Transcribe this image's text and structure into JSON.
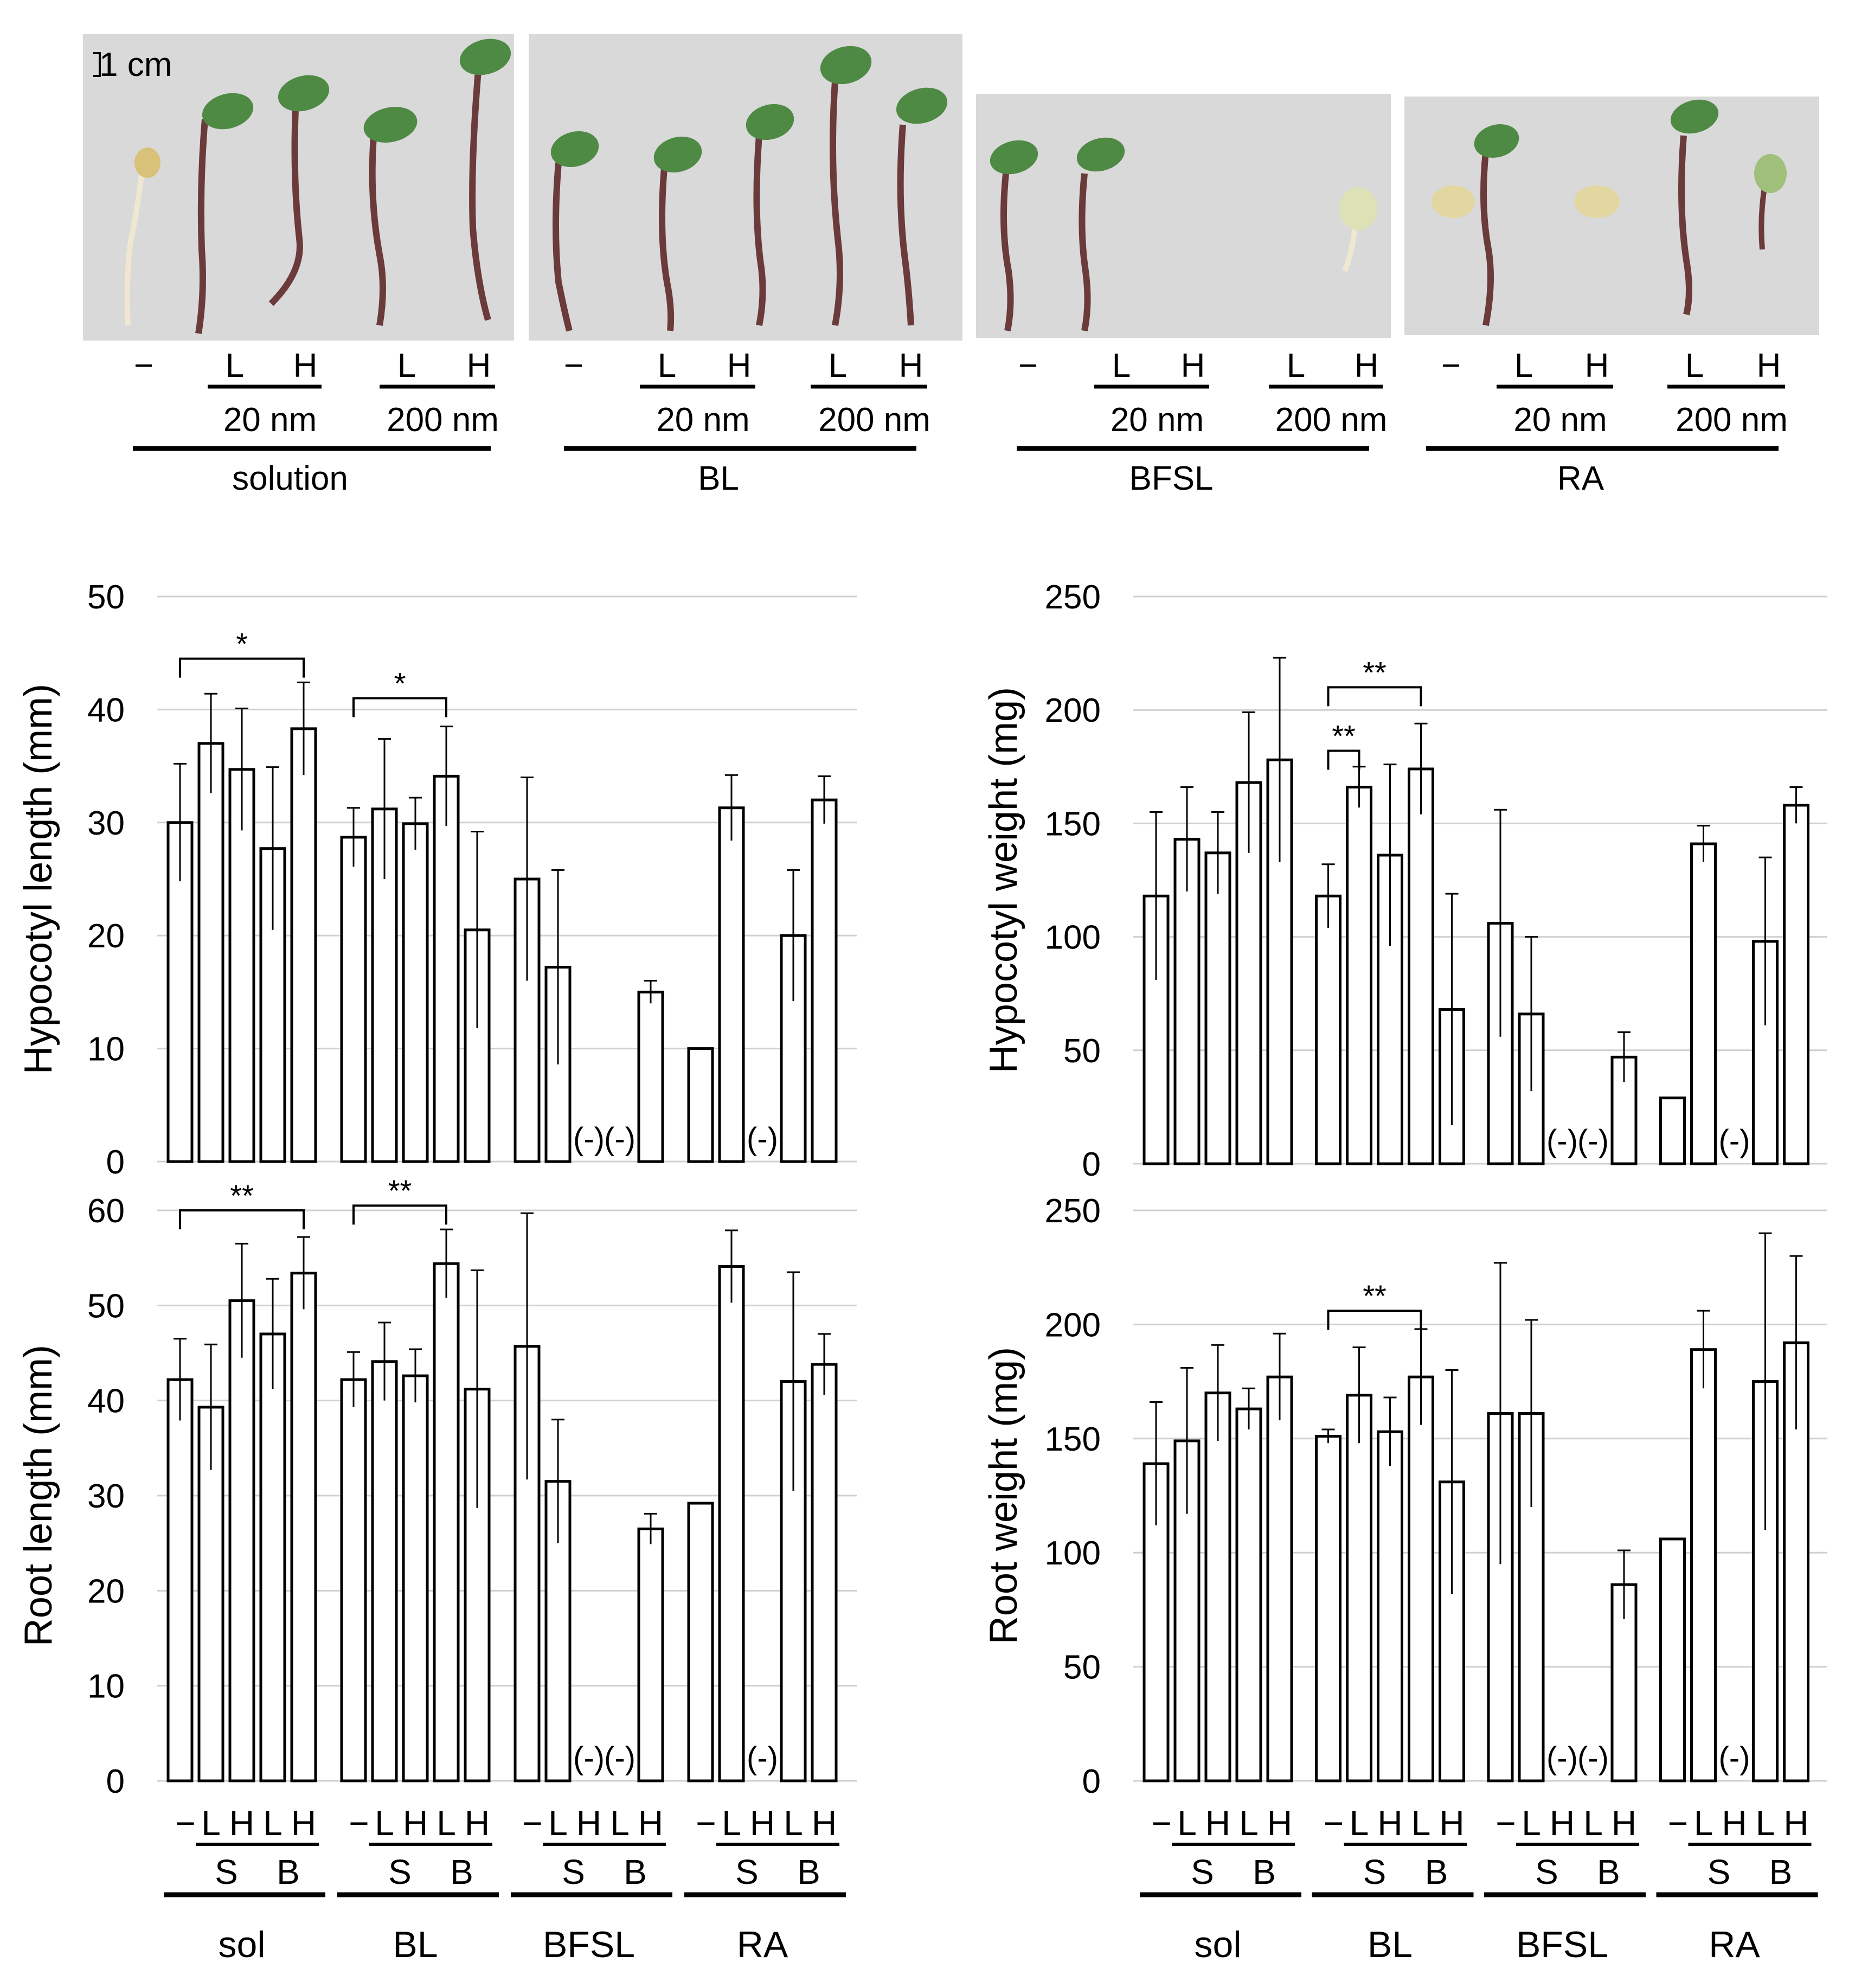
{
  "colors": {
    "bar_fill": "#ffffff",
    "bar_stroke": "#000000",
    "grid": "#d0d0d0",
    "photo_background": "#d9d9d9",
    "cotyledon_green": "#4f8a45",
    "seed_yellow": "#e2d7a0",
    "hypocotyl_dark": "#6b3a3a",
    "root_cream": "#efe7d0"
  },
  "photos": {
    "scale_bar": "1 cm",
    "dose_labels": [
      "20 nm",
      "200 nm"
    ],
    "minus_label": "−",
    "low_label": "L",
    "high_label": "H",
    "groups": [
      "solution",
      "BL",
      "BFSL",
      "RA"
    ]
  },
  "bottom_labels": {
    "minus": "−",
    "L": "L",
    "H": "H",
    "S": "S",
    "B": "B",
    "groups": [
      "sol",
      "BL",
      "BFSL",
      "RA"
    ]
  },
  "chart_data": [
    {
      "id": "hypocotyl_length",
      "type": "bar",
      "ylabel": "Hypocotyl length (mm)",
      "ylim": [
        0,
        50
      ],
      "yticks": [
        0,
        10,
        20,
        30,
        40,
        50
      ],
      "grid": true,
      "groups": [
        "sol",
        "BL",
        "BFSL",
        "RA"
      ],
      "bars_per_group": [
        "−",
        "L (S)",
        "H (S)",
        "L (B)",
        "H (B)"
      ],
      "values": [
        [
          30.0,
          37.0,
          34.7,
          27.7,
          38.3
        ],
        [
          28.7,
          31.2,
          29.9,
          34.1,
          20.5
        ],
        [
          25.0,
          17.2,
          0,
          0,
          15.0
        ],
        [
          10.0,
          31.3,
          0,
          20.0,
          32.0
        ]
      ],
      "errors": [
        [
          5.2,
          4.4,
          5.4,
          7.2,
          4.1
        ],
        [
          2.6,
          6.2,
          2.3,
          4.4,
          8.7
        ],
        [
          9.0,
          8.6,
          0,
          0,
          1.0
        ],
        [
          0,
          2.9,
          0,
          5.8,
          2.1
        ]
      ],
      "not_detected_label": "(-)",
      "not_detected": [
        [
          2,
          2
        ],
        [
          2,
          3
        ],
        [
          3,
          2
        ]
      ],
      "significance": [
        {
          "label": "*",
          "group": 0,
          "from": 0,
          "to": 4,
          "y": 44.5
        },
        {
          "label": "*",
          "group": 1,
          "from": 0,
          "to": 3,
          "y": 41.0
        }
      ]
    },
    {
      "id": "hypocotyl_weight",
      "type": "bar",
      "ylabel": "Hypocotyl weight (mg)",
      "ylim": [
        0,
        250
      ],
      "yticks": [
        0,
        50,
        100,
        150,
        200,
        250
      ],
      "grid": true,
      "groups": [
        "sol",
        "BL",
        "BFSL",
        "RA"
      ],
      "bars_per_group": [
        "−",
        "L (S)",
        "H (S)",
        "L (B)",
        "H (B)"
      ],
      "values": [
        [
          118,
          143,
          137,
          168,
          178
        ],
        [
          118,
          166,
          136,
          174,
          68
        ],
        [
          106,
          66,
          0,
          0,
          47
        ],
        [
          29,
          141,
          0,
          98,
          158
        ]
      ],
      "errors": [
        [
          37,
          23,
          18,
          31,
          45
        ],
        [
          14,
          9,
          40,
          20,
          51
        ],
        [
          50,
          34,
          0,
          0,
          11
        ],
        [
          0,
          8,
          0,
          37,
          8
        ]
      ],
      "not_detected_label": "(-)",
      "not_detected": [
        [
          2,
          2
        ],
        [
          2,
          3
        ],
        [
          3,
          2
        ]
      ],
      "significance": [
        {
          "label": "**",
          "group": 1,
          "from": 0,
          "to": 3,
          "y": 210
        },
        {
          "label": "**",
          "group": 1,
          "from": 0,
          "to": 1,
          "y": 182
        }
      ]
    },
    {
      "id": "root_length",
      "type": "bar",
      "ylabel": "Root length (mm)",
      "ylim": [
        0,
        60
      ],
      "yticks": [
        0,
        10,
        20,
        30,
        40,
        50,
        60
      ],
      "grid": true,
      "groups": [
        "sol",
        "BL",
        "BFSL",
        "RA"
      ],
      "bars_per_group": [
        "−",
        "L (S)",
        "H (S)",
        "L (B)",
        "H (B)"
      ],
      "values": [
        [
          42.2,
          39.3,
          50.5,
          47.0,
          53.4
        ],
        [
          42.2,
          44.1,
          42.6,
          54.4,
          41.2
        ],
        [
          45.7,
          31.5,
          0,
          0,
          26.5
        ],
        [
          29.2,
          54.1,
          0,
          42.0,
          43.8
        ]
      ],
      "errors": [
        [
          4.3,
          6.6,
          6.0,
          5.8,
          3.8
        ],
        [
          2.9,
          4.1,
          2.8,
          3.6,
          12.5
        ],
        [
          14.0,
          6.5,
          0,
          0,
          1.6
        ],
        [
          0,
          3.8,
          0,
          11.5,
          3.2
        ]
      ],
      "not_detected_label": "(-)",
      "not_detected": [
        [
          2,
          2
        ],
        [
          2,
          3
        ],
        [
          3,
          2
        ]
      ],
      "significance": [
        {
          "label": "**",
          "group": 0,
          "from": 0,
          "to": 4,
          "y": 60.0
        },
        {
          "label": "**",
          "group": 1,
          "from": 0,
          "to": 3,
          "y": 60.5
        }
      ]
    },
    {
      "id": "root_weight",
      "type": "bar",
      "ylabel": "Root weight (mg)",
      "ylim": [
        0,
        250
      ],
      "yticks": [
        0,
        50,
        100,
        150,
        200,
        250
      ],
      "grid": true,
      "groups": [
        "sol",
        "BL",
        "BFSL",
        "RA"
      ],
      "bars_per_group": [
        "−",
        "L (S)",
        "H (S)",
        "L (B)",
        "H (B)"
      ],
      "values": [
        [
          139,
          149,
          170,
          163,
          177
        ],
        [
          151,
          169,
          153,
          177,
          131
        ],
        [
          161,
          161,
          0,
          0,
          86
        ],
        [
          106,
          189,
          0,
          175,
          192
        ]
      ],
      "errors": [
        [
          27,
          32,
          21,
          9,
          19
        ],
        [
          3,
          21,
          15,
          21,
          49
        ],
        [
          66,
          41,
          0,
          0,
          15
        ],
        [
          0,
          17,
          0,
          65,
          38
        ]
      ],
      "not_detected_label": "(-)",
      "not_detected": [
        [
          2,
          2
        ],
        [
          2,
          3
        ],
        [
          3,
          2
        ]
      ],
      "significance": [
        {
          "label": "**",
          "group": 1,
          "from": 0,
          "to": 3,
          "y": 206
        }
      ]
    }
  ]
}
